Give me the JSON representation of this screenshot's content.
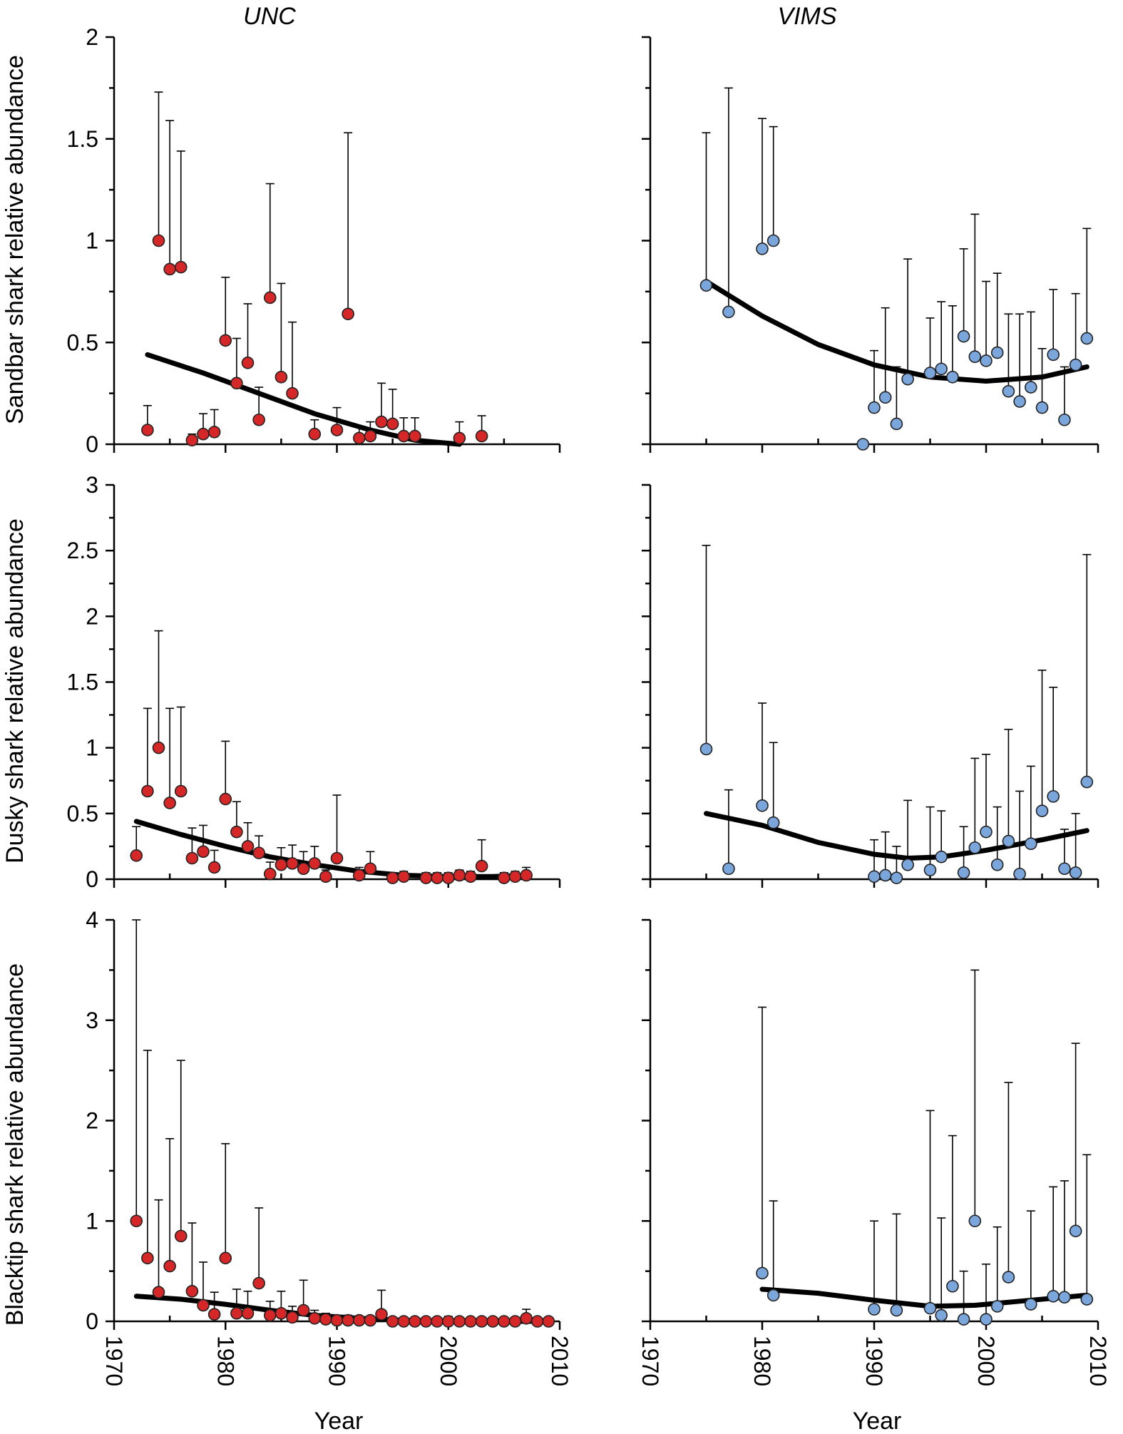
{
  "chart_data": [
    {
      "type": "scatter",
      "panel": "sandbar-unc",
      "title": "UNC",
      "ylabel": "Sandbar shark relative abundance",
      "xlabel": "",
      "xlim": [
        1970,
        2010
      ],
      "ylim": [
        0,
        2
      ],
      "yticks": [
        "0",
        "0.5",
        "1",
        "1.5",
        "2"
      ],
      "marker_color": "#d62728",
      "points": [
        {
          "x": 1973,
          "y": 0.07,
          "upper": 0.19
        },
        {
          "x": 1974,
          "y": 1.0,
          "upper": 1.73
        },
        {
          "x": 1975,
          "y": 0.86,
          "upper": 1.59
        },
        {
          "x": 1976,
          "y": 0.87,
          "upper": 1.44
        },
        {
          "x": 1977,
          "y": 0.02,
          "upper": 0.05
        },
        {
          "x": 1978,
          "y": 0.05,
          "upper": 0.15
        },
        {
          "x": 1979,
          "y": 0.06,
          "upper": 0.17
        },
        {
          "x": 1980,
          "y": 0.51,
          "upper": 0.82
        },
        {
          "x": 1981,
          "y": 0.3,
          "upper": 0.52
        },
        {
          "x": 1982,
          "y": 0.4,
          "upper": 0.69
        },
        {
          "x": 1983,
          "y": 0.12,
          "upper": 0.28
        },
        {
          "x": 1984,
          "y": 0.72,
          "upper": 1.28
        },
        {
          "x": 1985,
          "y": 0.33,
          "upper": 0.79
        },
        {
          "x": 1986,
          "y": 0.25,
          "upper": 0.6
        },
        {
          "x": 1988,
          "y": 0.05,
          "upper": 0.12
        },
        {
          "x": 1990,
          "y": 0.07,
          "upper": 0.18
        },
        {
          "x": 1991,
          "y": 0.64,
          "upper": 1.53
        },
        {
          "x": 1992,
          "y": 0.03,
          "upper": 0.09
        },
        {
          "x": 1993,
          "y": 0.04,
          "upper": 0.11
        },
        {
          "x": 1994,
          "y": 0.11,
          "upper": 0.3
        },
        {
          "x": 1995,
          "y": 0.1,
          "upper": 0.27
        },
        {
          "x": 1996,
          "y": 0.04,
          "upper": 0.13
        },
        {
          "x": 1997,
          "y": 0.04,
          "upper": 0.13
        },
        {
          "x": 2001,
          "y": 0.03,
          "upper": 0.11
        },
        {
          "x": 2003,
          "y": 0.04,
          "upper": 0.14
        }
      ],
      "trend": {
        "x": [
          1973,
          1978,
          1983,
          1988,
          1993,
          1997,
          2001
        ],
        "y": [
          0.44,
          0.35,
          0.25,
          0.15,
          0.07,
          0.02,
          0.0
        ]
      }
    },
    {
      "type": "scatter",
      "panel": "sandbar-vims",
      "title": "VIMS",
      "ylabel": "",
      "xlabel": "",
      "xlim": [
        1970,
        2010
      ],
      "ylim": [
        0,
        2
      ],
      "yticks": [],
      "marker_color": "#7aa6dc",
      "points": [
        {
          "x": 1975,
          "y": 0.78,
          "upper": 1.53
        },
        {
          "x": 1977,
          "y": 0.65,
          "upper": 1.75
        },
        {
          "x": 1980,
          "y": 0.96,
          "upper": 1.6
        },
        {
          "x": 1981,
          "y": 1.0,
          "upper": 1.56
        },
        {
          "x": 1989,
          "y": 0.0,
          "upper": 0.0
        },
        {
          "x": 1990,
          "y": 0.18,
          "upper": 0.46
        },
        {
          "x": 1991,
          "y": 0.23,
          "upper": 0.67
        },
        {
          "x": 1992,
          "y": 0.1,
          "upper": 0.38
        },
        {
          "x": 1993,
          "y": 0.32,
          "upper": 0.91
        },
        {
          "x": 1995,
          "y": 0.35,
          "upper": 0.62
        },
        {
          "x": 1996,
          "y": 0.37,
          "upper": 0.7
        },
        {
          "x": 1997,
          "y": 0.33,
          "upper": 0.68
        },
        {
          "x": 1998,
          "y": 0.53,
          "upper": 0.96
        },
        {
          "x": 1999,
          "y": 0.43,
          "upper": 1.13
        },
        {
          "x": 2000,
          "y": 0.41,
          "upper": 0.8
        },
        {
          "x": 2001,
          "y": 0.45,
          "upper": 0.84
        },
        {
          "x": 2002,
          "y": 0.26,
          "upper": 0.64
        },
        {
          "x": 2003,
          "y": 0.21,
          "upper": 0.64
        },
        {
          "x": 2004,
          "y": 0.28,
          "upper": 0.65
        },
        {
          "x": 2005,
          "y": 0.18,
          "upper": 0.47
        },
        {
          "x": 2006,
          "y": 0.44,
          "upper": 0.76
        },
        {
          "x": 2007,
          "y": 0.12,
          "upper": 0.38
        },
        {
          "x": 2008,
          "y": 0.39,
          "upper": 0.74
        },
        {
          "x": 2009,
          "y": 0.52,
          "upper": 1.06
        }
      ],
      "trend": {
        "x": [
          1975,
          1980,
          1985,
          1990,
          1995,
          2000,
          2005,
          2009
        ],
        "y": [
          0.8,
          0.63,
          0.49,
          0.39,
          0.33,
          0.31,
          0.33,
          0.38
        ]
      }
    },
    {
      "type": "scatter",
      "panel": "dusky-unc",
      "title": "",
      "ylabel": "Dusky shark relative abundance",
      "xlabel": "",
      "xlim": [
        1970,
        2010
      ],
      "ylim": [
        0,
        3
      ],
      "yticks": [
        "0",
        "0.5",
        "1",
        "1.5",
        "2",
        "2.5",
        "3"
      ],
      "marker_color": "#d62728",
      "points": [
        {
          "x": 1972,
          "y": 0.18,
          "upper": 0.4
        },
        {
          "x": 1973,
          "y": 0.67,
          "upper": 1.3
        },
        {
          "x": 1974,
          "y": 1.0,
          "upper": 1.89
        },
        {
          "x": 1975,
          "y": 0.58,
          "upper": 1.3
        },
        {
          "x": 1976,
          "y": 0.67,
          "upper": 1.31
        },
        {
          "x": 1977,
          "y": 0.16,
          "upper": 0.39
        },
        {
          "x": 1978,
          "y": 0.21,
          "upper": 0.41
        },
        {
          "x": 1979,
          "y": 0.09,
          "upper": 0.22
        },
        {
          "x": 1980,
          "y": 0.61,
          "upper": 1.05
        },
        {
          "x": 1981,
          "y": 0.36,
          "upper": 0.59
        },
        {
          "x": 1982,
          "y": 0.25,
          "upper": 0.43
        },
        {
          "x": 1983,
          "y": 0.2,
          "upper": 0.33
        },
        {
          "x": 1984,
          "y": 0.04,
          "upper": 0.13
        },
        {
          "x": 1985,
          "y": 0.11,
          "upper": 0.24
        },
        {
          "x": 1986,
          "y": 0.12,
          "upper": 0.26
        },
        {
          "x": 1987,
          "y": 0.08,
          "upper": 0.21
        },
        {
          "x": 1988,
          "y": 0.12,
          "upper": 0.25
        },
        {
          "x": 1989,
          "y": 0.02,
          "upper": 0.07
        },
        {
          "x": 1990,
          "y": 0.16,
          "upper": 0.64
        },
        {
          "x": 1992,
          "y": 0.03,
          "upper": 0.09
        },
        {
          "x": 1993,
          "y": 0.08,
          "upper": 0.21
        },
        {
          "x": 1995,
          "y": 0.01,
          "upper": 0.05
        },
        {
          "x": 1996,
          "y": 0.02,
          "upper": 0.06
        },
        {
          "x": 1998,
          "y": 0.01,
          "upper": 0.05
        },
        {
          "x": 1999,
          "y": 0.01,
          "upper": 0.05
        },
        {
          "x": 2000,
          "y": 0.01,
          "upper": 0.05
        },
        {
          "x": 2001,
          "y": 0.03,
          "upper": 0.07
        },
        {
          "x": 2002,
          "y": 0.02,
          "upper": 0.06
        },
        {
          "x": 2003,
          "y": 0.1,
          "upper": 0.3
        },
        {
          "x": 2005,
          "y": 0.01,
          "upper": 0.05
        },
        {
          "x": 2006,
          "y": 0.02,
          "upper": 0.06
        },
        {
          "x": 2007,
          "y": 0.03,
          "upper": 0.09
        }
      ],
      "trend": {
        "x": [
          1972,
          1976,
          1980,
          1984,
          1988,
          1992,
          1996,
          2000,
          2004,
          2007
        ],
        "y": [
          0.44,
          0.34,
          0.25,
          0.17,
          0.11,
          0.06,
          0.03,
          0.02,
          0.02,
          0.03
        ]
      }
    },
    {
      "type": "scatter",
      "panel": "dusky-vims",
      "title": "",
      "ylabel": "",
      "xlabel": "",
      "xlim": [
        1970,
        2010
      ],
      "ylim": [
        0,
        3
      ],
      "yticks": [],
      "marker_color": "#7aa6dc",
      "points": [
        {
          "x": 1975,
          "y": 0.99,
          "upper": 2.54
        },
        {
          "x": 1977,
          "y": 0.08,
          "upper": 0.68
        },
        {
          "x": 1980,
          "y": 0.56,
          "upper": 1.34
        },
        {
          "x": 1981,
          "y": 0.43,
          "upper": 1.04
        },
        {
          "x": 1990,
          "y": 0.02,
          "upper": 0.3
        },
        {
          "x": 1991,
          "y": 0.03,
          "upper": 0.36
        },
        {
          "x": 1992,
          "y": 0.01,
          "upper": 0.25
        },
        {
          "x": 1993,
          "y": 0.11,
          "upper": 0.6
        },
        {
          "x": 1995,
          "y": 0.07,
          "upper": 0.55
        },
        {
          "x": 1996,
          "y": 0.17,
          "upper": 0.52
        },
        {
          "x": 1998,
          "y": 0.05,
          "upper": 0.4
        },
        {
          "x": 1999,
          "y": 0.24,
          "upper": 0.92
        },
        {
          "x": 2000,
          "y": 0.36,
          "upper": 0.95
        },
        {
          "x": 2001,
          "y": 0.11,
          "upper": 0.55
        },
        {
          "x": 2002,
          "y": 0.29,
          "upper": 1.14
        },
        {
          "x": 2003,
          "y": 0.04,
          "upper": 0.67
        },
        {
          "x": 2004,
          "y": 0.27,
          "upper": 0.86
        },
        {
          "x": 2005,
          "y": 0.52,
          "upper": 1.59
        },
        {
          "x": 2006,
          "y": 0.63,
          "upper": 1.46
        },
        {
          "x": 2007,
          "y": 0.08,
          "upper": 0.38
        },
        {
          "x": 2008,
          "y": 0.05,
          "upper": 0.5
        },
        {
          "x": 2009,
          "y": 0.74,
          "upper": 2.47
        }
      ],
      "trend": {
        "x": [
          1975,
          1980,
          1985,
          1990,
          1993,
          1996,
          2000,
          2005,
          2009
        ],
        "y": [
          0.5,
          0.41,
          0.28,
          0.19,
          0.16,
          0.17,
          0.22,
          0.3,
          0.37
        ]
      }
    },
    {
      "type": "scatter",
      "panel": "blacktip-unc",
      "title": "",
      "ylabel": "Blacktip shark relative abundance",
      "xlabel": "Year",
      "xlim": [
        1970,
        2010
      ],
      "ylim": [
        0,
        4
      ],
      "yticks": [
        "0",
        "1",
        "2",
        "3",
        "4"
      ],
      "xticks": [
        "1970",
        "1980",
        "1990",
        "2000",
        "2010"
      ],
      "marker_color": "#d62728",
      "points": [
        {
          "x": 1972,
          "y": 1.0,
          "upper": 4.0
        },
        {
          "x": 1973,
          "y": 0.63,
          "upper": 2.7
        },
        {
          "x": 1974,
          "y": 0.29,
          "upper": 1.21
        },
        {
          "x": 1975,
          "y": 0.55,
          "upper": 1.82
        },
        {
          "x": 1976,
          "y": 0.85,
          "upper": 2.6
        },
        {
          "x": 1977,
          "y": 0.3,
          "upper": 0.98
        },
        {
          "x": 1978,
          "y": 0.16,
          "upper": 0.59
        },
        {
          "x": 1979,
          "y": 0.07,
          "upper": 0.29
        },
        {
          "x": 1980,
          "y": 0.63,
          "upper": 1.77
        },
        {
          "x": 1981,
          "y": 0.08,
          "upper": 0.32
        },
        {
          "x": 1982,
          "y": 0.08,
          "upper": 0.3
        },
        {
          "x": 1983,
          "y": 0.38,
          "upper": 1.13
        },
        {
          "x": 1984,
          "y": 0.06,
          "upper": 0.2
        },
        {
          "x": 1985,
          "y": 0.08,
          "upper": 0.3
        },
        {
          "x": 1986,
          "y": 0.04,
          "upper": 0.15
        },
        {
          "x": 1987,
          "y": 0.11,
          "upper": 0.41
        },
        {
          "x": 1988,
          "y": 0.03,
          "upper": 0.11
        },
        {
          "x": 1989,
          "y": 0.02,
          "upper": 0.08
        },
        {
          "x": 1990,
          "y": 0.01,
          "upper": 0.06
        },
        {
          "x": 1991,
          "y": 0.01,
          "upper": 0.06
        },
        {
          "x": 1992,
          "y": 0.01,
          "upper": 0.05
        },
        {
          "x": 1993,
          "y": 0.01,
          "upper": 0.05
        },
        {
          "x": 1994,
          "y": 0.07,
          "upper": 0.31
        },
        {
          "x": 1995,
          "y": 0.0,
          "upper": 0.04
        },
        {
          "x": 1996,
          "y": 0.0,
          "upper": 0.04
        },
        {
          "x": 1997,
          "y": 0.0,
          "upper": 0.04
        },
        {
          "x": 1998,
          "y": 0.0,
          "upper": 0.04
        },
        {
          "x": 1999,
          "y": 0.0,
          "upper": 0.04
        },
        {
          "x": 2000,
          "y": 0.0,
          "upper": 0.05
        },
        {
          "x": 2001,
          "y": 0.0,
          "upper": 0.04
        },
        {
          "x": 2002,
          "y": 0.0,
          "upper": 0.04
        },
        {
          "x": 2003,
          "y": 0.0,
          "upper": 0.04
        },
        {
          "x": 2004,
          "y": 0.0,
          "upper": 0.04
        },
        {
          "x": 2005,
          "y": 0.0,
          "upper": 0.04
        },
        {
          "x": 2006,
          "y": 0.0,
          "upper": 0.04
        },
        {
          "x": 2007,
          "y": 0.03,
          "upper": 0.12
        },
        {
          "x": 2008,
          "y": 0.0,
          "upper": 0.04
        },
        {
          "x": 2009,
          "y": 0.0,
          "upper": 0.04
        }
      ],
      "trend": {
        "x": [
          1972,
          1976,
          1980,
          1984,
          1988,
          1992,
          1996,
          2000,
          2004,
          2009
        ],
        "y": [
          0.25,
          0.22,
          0.17,
          0.11,
          0.06,
          0.03,
          0.01,
          0.0,
          0.0,
          0.0
        ]
      }
    },
    {
      "type": "scatter",
      "panel": "blacktip-vims",
      "title": "",
      "ylabel": "",
      "xlabel": "Year",
      "xlim": [
        1970,
        2010
      ],
      "ylim": [
        0,
        4
      ],
      "yticks": [],
      "xticks": [
        "1970",
        "1980",
        "1990",
        "2000",
        "2010"
      ],
      "marker_color": "#7aa6dc",
      "points": [
        {
          "x": 1980,
          "y": 0.48,
          "upper": 3.13
        },
        {
          "x": 1981,
          "y": 0.26,
          "upper": 1.2
        },
        {
          "x": 1990,
          "y": 0.12,
          "upper": 1.0
        },
        {
          "x": 1992,
          "y": 0.11,
          "upper": 1.07
        },
        {
          "x": 1995,
          "y": 0.13,
          "upper": 2.1
        },
        {
          "x": 1996,
          "y": 0.06,
          "upper": 1.03
        },
        {
          "x": 1997,
          "y": 0.35,
          "upper": 1.85
        },
        {
          "x": 1998,
          "y": 0.02,
          "upper": 0.5
        },
        {
          "x": 1999,
          "y": 1.0,
          "upper": 3.5
        },
        {
          "x": 2000,
          "y": 0.02,
          "upper": 0.57
        },
        {
          "x": 2001,
          "y": 0.15,
          "upper": 0.94
        },
        {
          "x": 2002,
          "y": 0.44,
          "upper": 2.38
        },
        {
          "x": 2004,
          "y": 0.17,
          "upper": 1.1
        },
        {
          "x": 2006,
          "y": 0.25,
          "upper": 1.34
        },
        {
          "x": 2007,
          "y": 0.24,
          "upper": 1.4
        },
        {
          "x": 2008,
          "y": 0.9,
          "upper": 2.77
        },
        {
          "x": 2009,
          "y": 0.22,
          "upper": 1.66
        }
      ],
      "trend": {
        "x": [
          1980,
          1985,
          1990,
          1995,
          1999,
          2003,
          2009
        ],
        "y": [
          0.32,
          0.28,
          0.21,
          0.15,
          0.16,
          0.2,
          0.26
        ]
      }
    }
  ]
}
